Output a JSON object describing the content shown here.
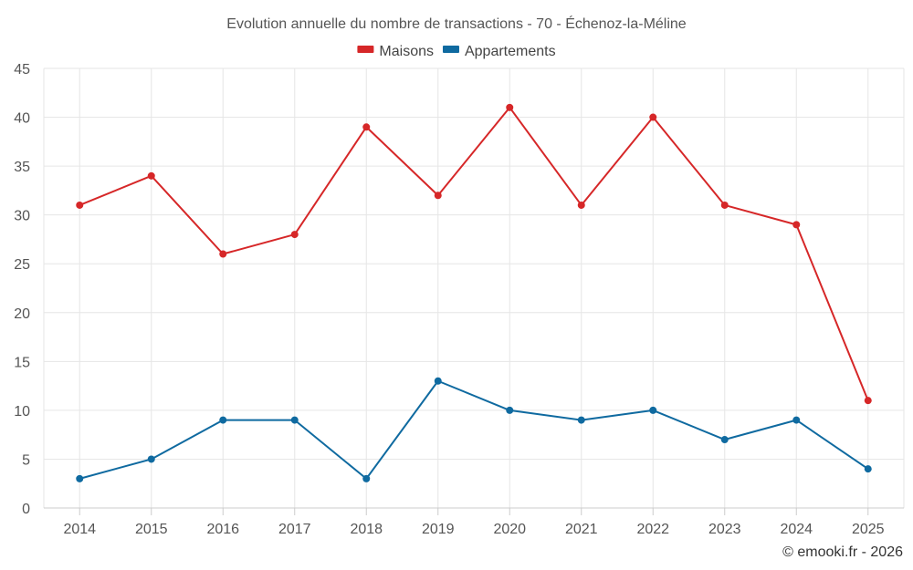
{
  "chart_data": {
    "type": "line",
    "title": "Evolution annuelle du nombre de transactions - 70 - Échenoz-la-Méline",
    "categories": [
      "2014",
      "2015",
      "2016",
      "2017",
      "2018",
      "2019",
      "2020",
      "2021",
      "2022",
      "2023",
      "2024",
      "2025"
    ],
    "series": [
      {
        "name": "Maisons",
        "color": "#d62728",
        "values": [
          31,
          34,
          26,
          28,
          39,
          32,
          41,
          31,
          40,
          31,
          29,
          11
        ]
      },
      {
        "name": "Appartements",
        "color": "#0f6aa0",
        "values": [
          3,
          5,
          9,
          9,
          3,
          13,
          10,
          9,
          10,
          7,
          9,
          4
        ]
      }
    ],
    "ylim": [
      0,
      45
    ],
    "yticks": [
      0,
      5,
      10,
      15,
      20,
      25,
      30,
      35,
      40,
      45
    ],
    "grid": true,
    "legend": "top-center",
    "xlabel": "",
    "ylabel": ""
  },
  "credit": "© emooki.fr - 2026"
}
